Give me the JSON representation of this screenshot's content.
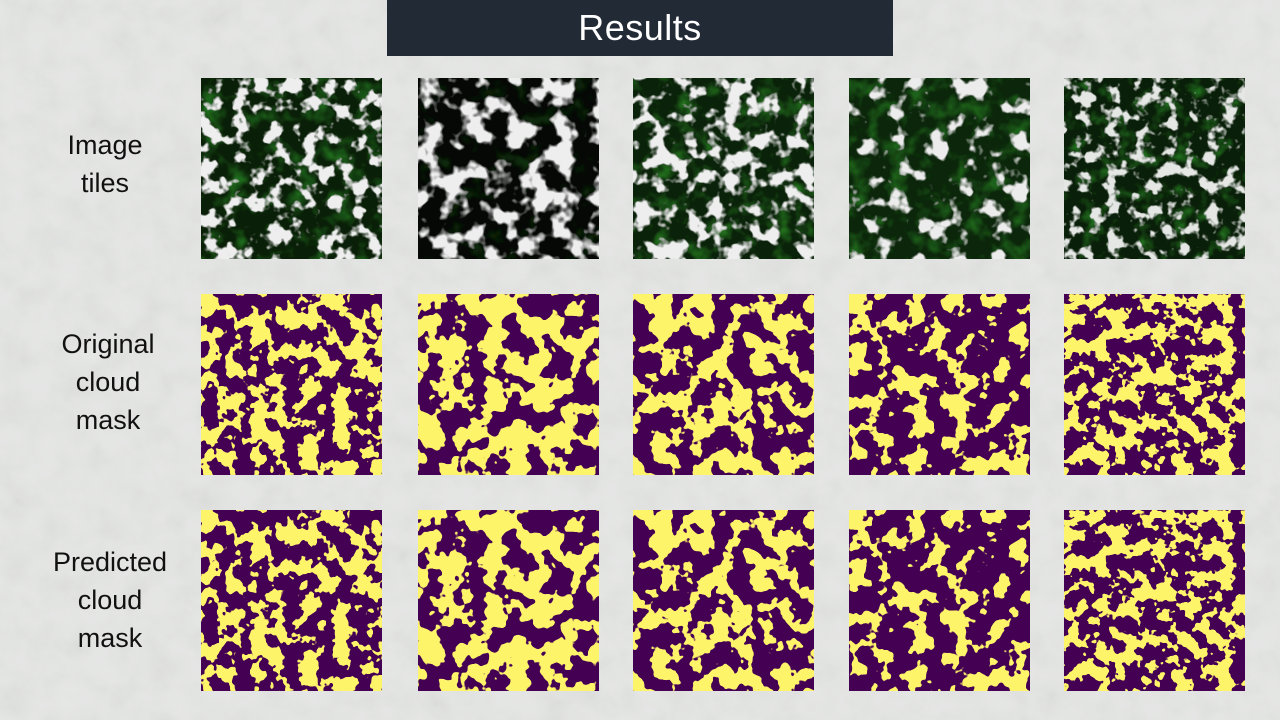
{
  "slide": {
    "title": "Results",
    "rows": [
      {
        "label_lines": [
          "Image",
          "tiles"
        ]
      },
      {
        "label_lines": [
          "Original",
          "cloud",
          "mask"
        ]
      },
      {
        "label_lines": [
          "Predicted",
          "cloud",
          "mask"
        ]
      }
    ]
  },
  "colors": {
    "title_bg": "#222a35",
    "mask_clear": "#440154",
    "mask_cloud": "#fde725",
    "mask_edge": "#21918c",
    "vegetation": "#1f6b1c",
    "cloud": "#d9d9d9"
  }
}
